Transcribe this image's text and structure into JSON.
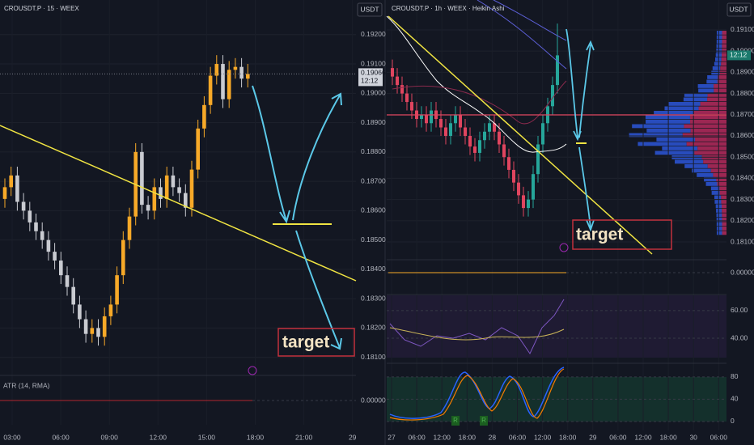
{
  "chart_data": [
    {
      "type": "candlestick",
      "title": "CROUSDT.P · 15 · WEEX",
      "currency": "USDT",
      "up_color": "#f7a928",
      "down_color": "#c9cbd1",
      "ylim": [
        0.18044,
        0.19318
      ],
      "yticks": [
        {
          "value": 0.192,
          "label": "0.19200"
        },
        {
          "value": 0.191,
          "label": "0.19100"
        },
        {
          "value": 0.19,
          "label": "0.19000"
        },
        {
          "value": 0.189,
          "label": "0.18900"
        },
        {
          "value": 0.188,
          "label": "0.18800"
        },
        {
          "value": 0.187,
          "label": "0.18700"
        },
        {
          "value": 0.186,
          "label": "0.18600"
        },
        {
          "value": 0.185,
          "label": "0.18500"
        },
        {
          "value": 0.184,
          "label": "0.18400"
        },
        {
          "value": 0.183,
          "label": "0.18300"
        },
        {
          "value": 0.182,
          "label": "0.18200"
        },
        {
          "value": 0.181,
          "label": "0.18100"
        }
      ],
      "time_labels": [
        "03:00",
        "06:00",
        "09:00",
        "12:00",
        "15:00",
        "18:00",
        "21:00",
        "29"
      ],
      "ohlc": [
        [
          0.1864,
          0.1871,
          0.1861,
          0.1868
        ],
        [
          0.1868,
          0.1875,
          0.1865,
          0.1872
        ],
        [
          0.1872,
          0.1875,
          0.186,
          0.1863
        ],
        [
          0.1863,
          0.1866,
          0.1857,
          0.186
        ],
        [
          0.186,
          0.1863,
          0.1853,
          0.1856
        ],
        [
          0.1856,
          0.1859,
          0.185,
          0.1853
        ],
        [
          0.1853,
          0.1856,
          0.1847,
          0.185
        ],
        [
          0.185,
          0.1853,
          0.1843,
          0.1846
        ],
        [
          0.1846,
          0.1849,
          0.184,
          0.1843
        ],
        [
          0.1843,
          0.1846,
          0.1835,
          0.1838
        ],
        [
          0.1838,
          0.1841,
          0.1831,
          0.1834
        ],
        [
          0.1834,
          0.1837,
          0.1825,
          0.1828
        ],
        [
          0.1828,
          0.1831,
          0.182,
          0.1823
        ],
        [
          0.1823,
          0.1826,
          0.1815,
          0.1818
        ],
        [
          0.1818,
          0.1823,
          0.1815,
          0.182
        ],
        [
          0.182,
          0.1823,
          0.1814,
          0.1817
        ],
        [
          0.1817,
          0.1827,
          0.1814,
          0.1824
        ],
        [
          0.1824,
          0.1831,
          0.1821,
          0.1828
        ],
        [
          0.1828,
          0.1841,
          0.1825,
          0.1838
        ],
        [
          0.1838,
          0.1853,
          0.1835,
          0.185
        ],
        [
          0.185,
          0.1861,
          0.1847,
          0.1858
        ],
        [
          0.1858,
          0.1883,
          0.1855,
          0.188
        ],
        [
          0.188,
          0.1883,
          0.1859,
          0.1862
        ],
        [
          0.1862,
          0.1865,
          0.1857,
          0.186
        ],
        [
          0.186,
          0.1871,
          0.1857,
          0.1868
        ],
        [
          0.1868,
          0.1871,
          0.1861,
          0.1864
        ],
        [
          0.1864,
          0.1875,
          0.1861,
          0.1872
        ],
        [
          0.1872,
          0.1875,
          0.1865,
          0.1868
        ],
        [
          0.1868,
          0.1871,
          0.1863,
          0.1866
        ],
        [
          0.1866,
          0.1869,
          0.1858,
          0.1861
        ],
        [
          0.1861,
          0.1877,
          0.1858,
          0.1874
        ],
        [
          0.1874,
          0.1891,
          0.1871,
          0.1888
        ],
        [
          0.1888,
          0.1899,
          0.1885,
          0.1896
        ],
        [
          0.1896,
          0.1909,
          0.1893,
          0.1906
        ],
        [
          0.1906,
          0.1913,
          0.1903,
          0.191
        ],
        [
          0.191,
          0.1913,
          0.1895,
          0.1898
        ],
        [
          0.1898,
          0.1911,
          0.1895,
          0.1908
        ],
        [
          0.1908,
          0.1912,
          0.1905,
          0.1909
        ],
        [
          0.1909,
          0.1912,
          0.1902,
          0.1905
        ],
        [
          0.1905,
          0.191,
          0.1902,
          0.19066
        ]
      ],
      "last_price": {
        "value": 0.19066,
        "label": "0.19066"
      },
      "countdown": "12:12",
      "annotation": "target",
      "indicators": [
        {
          "name": "ATR (14, RMA)",
          "ylim": [
            -0.00015,
            0.00015
          ],
          "yticks": [
            {
              "value": 0,
              "label": "0.00000"
            }
          ]
        }
      ]
    },
    {
      "type": "candlestick",
      "title": "CROUSDT.P · 1h · WEEX · Heikin Ashi",
      "currency": "USDT",
      "up_color": "#26a69a",
      "down_color": "#e0455f",
      "ylim": [
        0.1802,
        0.19241
      ],
      "yticks": [
        {
          "value": 0.191,
          "label": "0.19100"
        },
        {
          "value": 0.19,
          "label": "0.19000"
        },
        {
          "value": 0.189,
          "label": "0.18900"
        },
        {
          "value": 0.188,
          "label": "0.18800"
        },
        {
          "value": 0.187,
          "label": "0.18700"
        },
        {
          "value": 0.186,
          "label": "0.18600"
        },
        {
          "value": 0.185,
          "label": "0.18500"
        },
        {
          "value": 0.184,
          "label": "0.18400"
        },
        {
          "value": 0.183,
          "label": "0.18300"
        },
        {
          "value": 0.182,
          "label": "0.18200"
        },
        {
          "value": 0.181,
          "label": "0.18100"
        }
      ],
      "time_labels": [
        "27",
        "06:00",
        "12:00",
        "18:00",
        "28",
        "06:00",
        "12:00",
        "18:00",
        "29",
        "06:00",
        "12:00",
        "18:00",
        "30",
        "06:00"
      ],
      "ohlc": [
        [
          0.1892,
          0.1896,
          0.1884,
          0.1888
        ],
        [
          0.1888,
          0.1892,
          0.188,
          0.1884
        ],
        [
          0.1884,
          0.1888,
          0.1876,
          0.188
        ],
        [
          0.188,
          0.1884,
          0.1872,
          0.1876
        ],
        [
          0.1876,
          0.188,
          0.1868,
          0.1872
        ],
        [
          0.1872,
          0.1876,
          0.1864,
          0.1868
        ],
        [
          0.1868,
          0.1874,
          0.1864,
          0.187
        ],
        [
          0.187,
          0.1874,
          0.1862,
          0.1866
        ],
        [
          0.1866,
          0.1876,
          0.1862,
          0.1872
        ],
        [
          0.1872,
          0.1876,
          0.1864,
          0.1868
        ],
        [
          0.1868,
          0.1872,
          0.186,
          0.1864
        ],
        [
          0.1864,
          0.1868,
          0.1856,
          0.186
        ],
        [
          0.186,
          0.187,
          0.1856,
          0.1866
        ],
        [
          0.1866,
          0.1874,
          0.1862,
          0.187
        ],
        [
          0.187,
          0.1874,
          0.186,
          0.1864
        ],
        [
          0.1864,
          0.1868,
          0.1856,
          0.186
        ],
        [
          0.186,
          0.1864,
          0.1851,
          0.1855
        ],
        [
          0.1855,
          0.1859,
          0.1848,
          0.1852
        ],
        [
          0.1852,
          0.1862,
          0.1848,
          0.1858
        ],
        [
          0.1858,
          0.1866,
          0.1854,
          0.1862
        ],
        [
          0.1862,
          0.187,
          0.1858,
          0.1866
        ],
        [
          0.1866,
          0.187,
          0.1858,
          0.1862
        ],
        [
          0.1862,
          0.1866,
          0.1852,
          0.1856
        ],
        [
          0.1856,
          0.186,
          0.1846,
          0.185
        ],
        [
          0.185,
          0.1854,
          0.184,
          0.1844
        ],
        [
          0.1844,
          0.1848,
          0.1834,
          0.1838
        ],
        [
          0.1838,
          0.1842,
          0.1828,
          0.1832
        ],
        [
          0.1832,
          0.1836,
          0.1822,
          0.1826
        ],
        [
          0.1826,
          0.1834,
          0.1822,
          0.183
        ],
        [
          0.183,
          0.1846,
          0.1826,
          0.1842
        ],
        [
          0.1842,
          0.186,
          0.1838,
          0.1856
        ],
        [
          0.1856,
          0.187,
          0.1852,
          0.1866
        ],
        [
          0.1866,
          0.1878,
          0.1862,
          0.1874
        ],
        [
          0.1874,
          0.1888,
          0.187,
          0.1884
        ],
        [
          0.1884,
          0.1913,
          0.188,
          0.1898
        ]
      ],
      "countdown": "12:12",
      "annotation": "target",
      "markers": [
        "R",
        "R"
      ],
      "indicators": [
        {
          "ylim": [
            -0.00015,
            0.00015
          ],
          "yticks": [
            {
              "value": 0,
              "label": "0.00000"
            }
          ]
        },
        {
          "ylim": [
            26,
            71
          ],
          "yticks": [
            {
              "value": 60,
              "label": "60.00"
            },
            {
              "value": 40,
              "label": "40.00"
            }
          ]
        },
        {
          "ylim": [
            -16,
            103
          ],
          "yticks": [
            80,
            40,
            0
          ]
        }
      ]
    }
  ]
}
